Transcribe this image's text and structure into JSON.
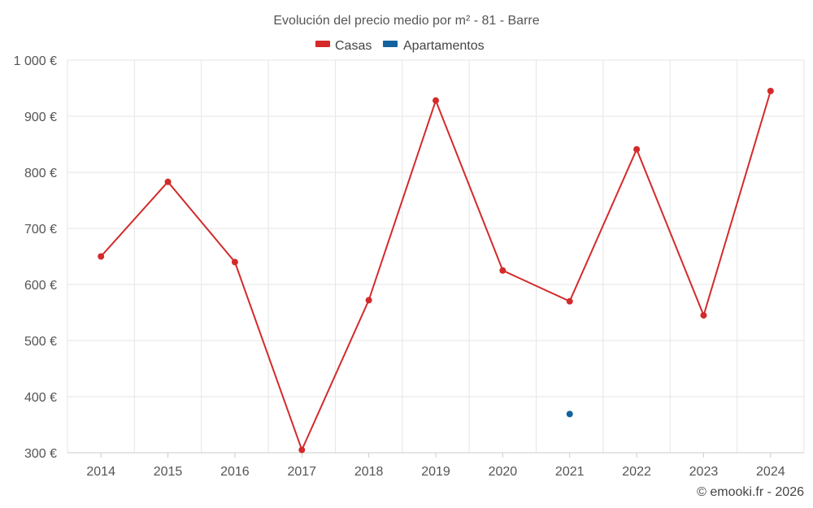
{
  "chart_data": {
    "type": "line",
    "title": "Evolución del precio medio por m² - 81 - Barre",
    "categories": [
      "2014",
      "2015",
      "2016",
      "2017",
      "2018",
      "2019",
      "2020",
      "2021",
      "2022",
      "2023",
      "2024"
    ],
    "series": [
      {
        "name": "Casas",
        "color": "#d42a2a",
        "values": [
          650,
          783,
          640,
          305,
          572,
          928,
          625,
          570,
          841,
          545,
          945
        ]
      },
      {
        "name": "Apartamentos",
        "color": "#13639e",
        "values": [
          null,
          null,
          null,
          null,
          null,
          null,
          null,
          369,
          null,
          null,
          null
        ]
      }
    ],
    "ylim": [
      300,
      1000
    ],
    "yticks": [
      300,
      400,
      500,
      600,
      700,
      800,
      900,
      1000
    ],
    "ytick_labels": [
      "300 €",
      "400 €",
      "500 €",
      "600 €",
      "700 €",
      "800 €",
      "900 €",
      "1 000 €"
    ],
    "grid": true,
    "legend_position": "top-center",
    "credit": "© emooki.fr - 2026"
  }
}
